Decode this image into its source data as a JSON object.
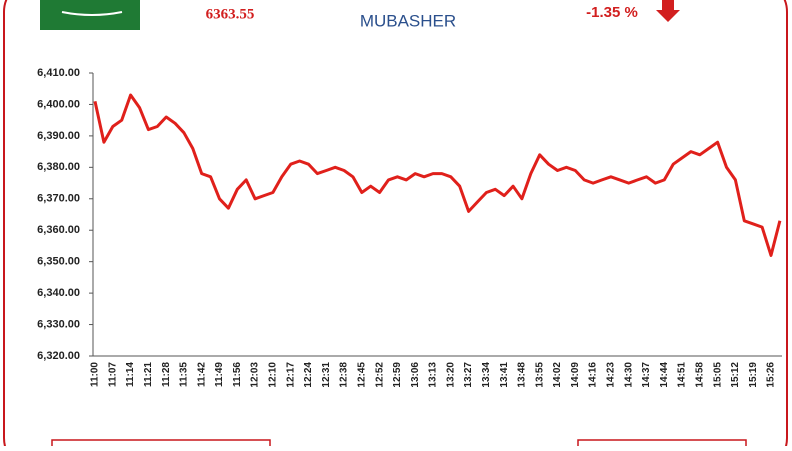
{
  "header": {
    "price": "6363.55",
    "logo": "MUBASHER",
    "change": "-1.35 %"
  },
  "chart_data": {
    "type": "line",
    "categories": [
      "11:00",
      null,
      "11:07",
      null,
      "11:14",
      null,
      "11:21",
      null,
      "11:28",
      null,
      "11:35",
      null,
      "11:42",
      null,
      "11:49",
      null,
      "11:56",
      null,
      "12:03",
      null,
      "12:10",
      null,
      "12:17",
      null,
      "12:24",
      null,
      "12:31",
      null,
      "12:38",
      null,
      "12:45",
      null,
      "12:52",
      null,
      "12:59",
      null,
      "13:06",
      null,
      "13:13",
      null,
      "13:20",
      null,
      "13:27",
      null,
      "13:34",
      null,
      "13:41",
      null,
      "13:48",
      null,
      "13:55",
      null,
      "14:02",
      null,
      "14:09",
      null,
      "14:16",
      null,
      "14:23",
      null,
      "14:30",
      null,
      "14:37",
      null,
      "14:44",
      null,
      "14:51",
      null,
      "14:58",
      null,
      "15:05",
      null,
      "15:12",
      null,
      "15:19",
      null,
      "15:26",
      null
    ],
    "values": [
      6401,
      6388,
      6393,
      6395,
      6403,
      6399,
      6392,
      6393,
      6396,
      6394,
      6391,
      6386,
      6378,
      6377,
      6370,
      6367,
      6373,
      6376,
      6370,
      6371,
      6372,
      6377,
      6381,
      6382,
      6381,
      6378,
      6379,
      6380,
      6379,
      6377,
      6372,
      6374,
      6372,
      6376,
      6377,
      6376,
      6378,
      6377,
      6378,
      6378,
      6377,
      6374,
      6366,
      6369,
      6372,
      6373,
      6371,
      6374,
      6370,
      6378,
      6384,
      6381,
      6379,
      6380,
      6379,
      6376,
      6375,
      6376,
      6377,
      6376,
      6375,
      6376,
      6377,
      6375,
      6376,
      6381,
      6383,
      6385,
      6384,
      6386,
      6388,
      6380,
      6376,
      6363,
      6362,
      6361,
      6352,
      6363
    ],
    "color": "#e0201b",
    "ylim": [
      6320,
      6410
    ],
    "yticks": [
      {
        "value": 6320,
        "label": "6,320.00"
      },
      {
        "value": 6330,
        "label": "6,330.00"
      },
      {
        "value": 6340,
        "label": "6,340.00"
      },
      {
        "value": 6350,
        "label": "6,350.00"
      },
      {
        "value": 6360,
        "label": "6,360.00"
      },
      {
        "value": 6370,
        "label": "6,370.00"
      },
      {
        "value": 6380,
        "label": "6,380.00"
      },
      {
        "value": 6390,
        "label": "6,390.00"
      },
      {
        "value": 6400,
        "label": "6,400.00"
      },
      {
        "value": 6410,
        "label": "6,410.00"
      }
    ],
    "grid": false
  }
}
